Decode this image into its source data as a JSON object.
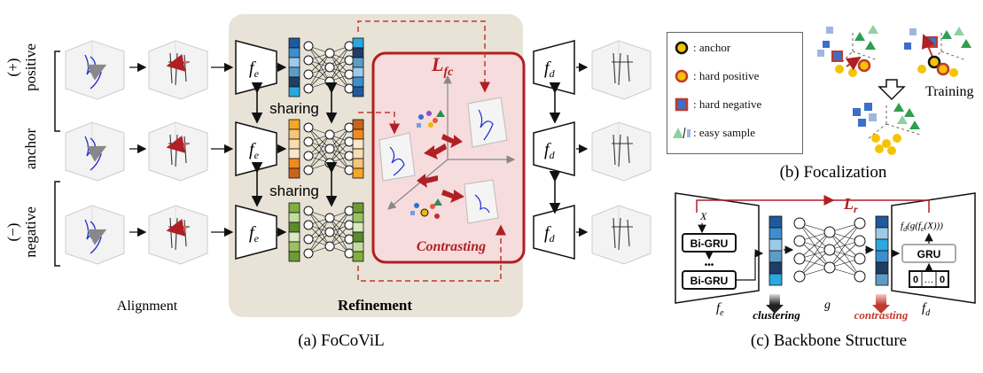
{
  "panel_a": {
    "caption": "(a) FoCoViL",
    "rows": [
      {
        "side_label": "positive",
        "sign": "(+)",
        "encoder": "f_e",
        "decoder": "f_d"
      },
      {
        "side_label": "anchor",
        "sign": "",
        "encoder": "f_e",
        "decoder": "f_d"
      },
      {
        "side_label": "negative",
        "sign": "(−)",
        "encoder": "f_e",
        "decoder": "f_d"
      }
    ],
    "sharing_label": "sharing",
    "alignment_label": "Alignment",
    "refinement_label": "Refinement",
    "loss_label": "L",
    "loss_subscript": "fc",
    "contrasting_label": "Contrasting",
    "colors": {
      "refinement_bg": "#e8e3d6",
      "contrast_border": "#b01f24",
      "contrast_fill": "#f6dcdc",
      "positive_code": [
        "#1e5a9c",
        "#3b8fd1",
        "#9ccbe9",
        "#5d9cc7",
        "#1f3e66",
        "#2aa8e0"
      ],
      "anchor_code": [
        "#f5a623",
        "#f7c47a",
        "#fbdcb0",
        "#fbe6ca",
        "#f08a1c",
        "#c8641a"
      ],
      "negative_code": [
        "#7fb03d",
        "#c4dba0",
        "#5a8c2b",
        "#d8e8c0",
        "#99c35f",
        "#6f9a35"
      ]
    }
  },
  "panel_b": {
    "caption": "(b) Focalization",
    "legend": [
      {
        "icon": "anchor-circle-icon",
        "text": ": anchor"
      },
      {
        "icon": "hard-positive-circle-icon",
        "text": ": hard positive"
      },
      {
        "icon": "hard-negative-square-icon",
        "text": ": hard negative"
      },
      {
        "icon": "easy-sample-icon",
        "text": ": easy sample"
      }
    ],
    "training_label": "Training"
  },
  "panel_c": {
    "caption": "(c) Backbone Structure",
    "loss_label": "L",
    "loss_subscript": "r",
    "input_label": "X",
    "bigru_label": "Bi-GRU",
    "dots_label": "•••",
    "gru_label": "GRU",
    "zero_vec": [
      "0",
      "…",
      "0"
    ],
    "output_formula": "f_d(g(f_e(X)))",
    "encoder_label": "f_e",
    "middle_label": "g",
    "decoder_label": "f_d",
    "clustering_label": "clustering",
    "contrasting_label": "contrasting"
  }
}
